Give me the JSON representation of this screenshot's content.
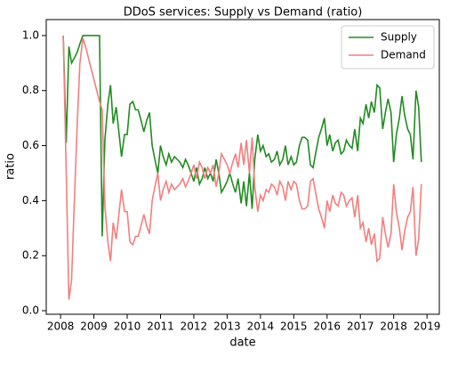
{
  "chart_data": {
    "type": "line",
    "title": "DDoS services: Supply vs Demand (ratio)",
    "x_label": "date",
    "y_label": "ratio",
    "x": [
      2008.08,
      2008.17,
      2008.25,
      2008.33,
      2008.42,
      2008.5,
      2008.58,
      2008.67,
      2008.75,
      2009.17,
      2009.25,
      2009.33,
      2009.42,
      2009.5,
      2009.58,
      2009.67,
      2009.75,
      2009.83,
      2009.92,
      2010.0,
      2010.08,
      2010.17,
      2010.25,
      2010.33,
      2010.42,
      2010.5,
      2010.58,
      2010.67,
      2010.75,
      2010.83,
      2010.92,
      2011.0,
      2011.08,
      2011.17,
      2011.25,
      2011.33,
      2011.42,
      2011.5,
      2011.58,
      2011.67,
      2011.75,
      2011.83,
      2011.92,
      2012.0,
      2012.08,
      2012.17,
      2012.25,
      2012.33,
      2012.42,
      2012.5,
      2012.58,
      2012.67,
      2012.75,
      2012.83,
      2012.92,
      2013.0,
      2013.08,
      2013.17,
      2013.25,
      2013.33,
      2013.42,
      2013.5,
      2013.58,
      2013.67,
      2013.75,
      2013.83,
      2013.92,
      2014.0,
      2014.08,
      2014.17,
      2014.25,
      2014.33,
      2014.42,
      2014.5,
      2014.58,
      2014.67,
      2014.75,
      2014.83,
      2014.92,
      2015.0,
      2015.08,
      2015.17,
      2015.25,
      2015.33,
      2015.42,
      2015.5,
      2015.58,
      2015.67,
      2015.75,
      2015.83,
      2015.92,
      2016.0,
      2016.08,
      2016.17,
      2016.25,
      2016.33,
      2016.42,
      2016.5,
      2016.58,
      2016.67,
      2016.75,
      2016.83,
      2016.92,
      2017.0,
      2017.08,
      2017.17,
      2017.25,
      2017.33,
      2017.42,
      2017.5,
      2017.58,
      2017.67,
      2017.75,
      2017.83,
      2017.92,
      2018.0,
      2018.08,
      2018.17,
      2018.25,
      2018.33,
      2018.42,
      2018.5,
      2018.58,
      2018.67,
      2018.75,
      2018.83
    ],
    "series": [
      {
        "name": "Supply",
        "color": "#228b22",
        "values": [
          1.0,
          0.61,
          0.96,
          0.9,
          0.92,
          0.94,
          0.97,
          1.0,
          1.0,
          1.0,
          0.27,
          0.62,
          0.75,
          0.82,
          0.68,
          0.74,
          0.65,
          0.56,
          0.64,
          0.64,
          0.75,
          0.76,
          0.73,
          0.73,
          0.69,
          0.65,
          0.69,
          0.72,
          0.6,
          0.55,
          0.5,
          0.6,
          0.56,
          0.53,
          0.57,
          0.54,
          0.56,
          0.55,
          0.54,
          0.52,
          0.55,
          0.53,
          0.5,
          0.47,
          0.52,
          0.46,
          0.48,
          0.52,
          0.48,
          0.5,
          0.47,
          0.55,
          0.5,
          0.43,
          0.45,
          0.47,
          0.5,
          0.46,
          0.43,
          0.48,
          0.39,
          0.47,
          0.38,
          0.5,
          0.37,
          0.55,
          0.64,
          0.58,
          0.6,
          0.56,
          0.57,
          0.54,
          0.55,
          0.58,
          0.53,
          0.55,
          0.6,
          0.53,
          0.56,
          0.53,
          0.54,
          0.6,
          0.63,
          0.63,
          0.62,
          0.53,
          0.52,
          0.58,
          0.63,
          0.66,
          0.7,
          0.6,
          0.64,
          0.58,
          0.61,
          0.62,
          0.57,
          0.58,
          0.62,
          0.6,
          0.59,
          0.66,
          0.58,
          0.7,
          0.68,
          0.75,
          0.7,
          0.76,
          0.72,
          0.82,
          0.81,
          0.66,
          0.72,
          0.77,
          0.72,
          0.54,
          0.64,
          0.7,
          0.78,
          0.71,
          0.66,
          0.64,
          0.55,
          0.8,
          0.74,
          0.54
        ]
      },
      {
        "name": "Demand",
        "color": "#f08080",
        "values": [
          1.0,
          0.5,
          0.04,
          0.11,
          0.42,
          0.68,
          0.9,
          0.99,
          0.96,
          0.76,
          0.73,
          0.38,
          0.25,
          0.18,
          0.32,
          0.26,
          0.35,
          0.44,
          0.36,
          0.36,
          0.25,
          0.24,
          0.27,
          0.27,
          0.31,
          0.35,
          0.31,
          0.28,
          0.4,
          0.45,
          0.5,
          0.4,
          0.44,
          0.47,
          0.43,
          0.46,
          0.44,
          0.45,
          0.46,
          0.48,
          0.45,
          0.47,
          0.5,
          0.53,
          0.48,
          0.54,
          0.52,
          0.48,
          0.52,
          0.5,
          0.53,
          0.45,
          0.5,
          0.57,
          0.55,
          0.53,
          0.5,
          0.54,
          0.57,
          0.52,
          0.61,
          0.53,
          0.62,
          0.5,
          0.63,
          0.45,
          0.36,
          0.42,
          0.4,
          0.44,
          0.43,
          0.46,
          0.45,
          0.42,
          0.47,
          0.45,
          0.4,
          0.47,
          0.44,
          0.47,
          0.46,
          0.4,
          0.37,
          0.37,
          0.38,
          0.47,
          0.48,
          0.42,
          0.37,
          0.34,
          0.3,
          0.4,
          0.36,
          0.42,
          0.39,
          0.38,
          0.43,
          0.42,
          0.38,
          0.4,
          0.41,
          0.34,
          0.42,
          0.3,
          0.32,
          0.25,
          0.3,
          0.24,
          0.28,
          0.18,
          0.19,
          0.34,
          0.28,
          0.23,
          0.28,
          0.46,
          0.36,
          0.3,
          0.22,
          0.29,
          0.34,
          0.36,
          0.45,
          0.2,
          0.26,
          0.46
        ]
      }
    ],
    "xlim": [
      2007.57,
      2019.37
    ],
    "xticks": [
      2008,
      2009,
      2010,
      2011,
      2012,
      2013,
      2014,
      2015,
      2016,
      2017,
      2018,
      2019
    ],
    "ylim": [
      -0.013,
      1.058
    ],
    "yticks": [
      {
        "value": 0,
        "label": "0.0"
      },
      0.2,
      0.4,
      0.6,
      0.8,
      {
        "value": 1,
        "label": "1.0"
      }
    ],
    "legend": "upper right"
  }
}
